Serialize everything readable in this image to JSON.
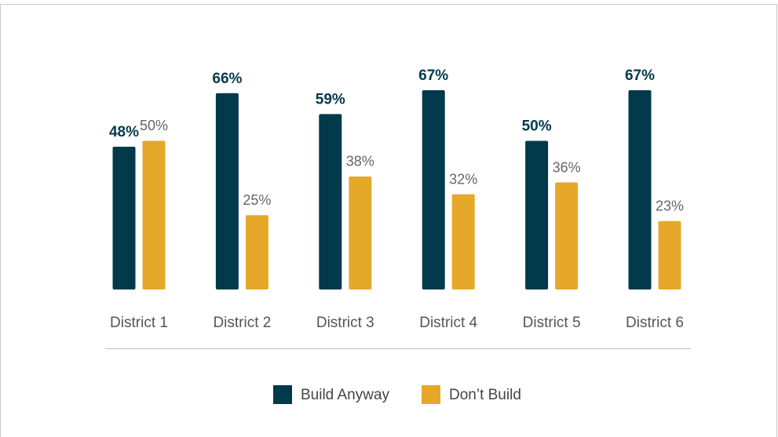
{
  "chart_data": {
    "type": "bar",
    "categories": [
      "District 1",
      "District 2",
      "District 3",
      "District 4",
      "District 5",
      "District 6"
    ],
    "series": [
      {
        "name": "Build Anyway",
        "color": "#023a4b",
        "values": [
          48,
          66,
          59,
          67,
          50,
          67
        ],
        "value_labels": [
          "48%",
          "66%",
          "59%",
          "67%",
          "50%",
          "67%"
        ]
      },
      {
        "name": "Don’t Build",
        "color": "#e5a82a",
        "values": [
          50,
          25,
          38,
          32,
          36,
          23
        ],
        "value_labels": [
          "50%",
          "25%",
          "38%",
          "32%",
          "36%",
          "23%"
        ]
      }
    ],
    "legend": "bottom"
  }
}
